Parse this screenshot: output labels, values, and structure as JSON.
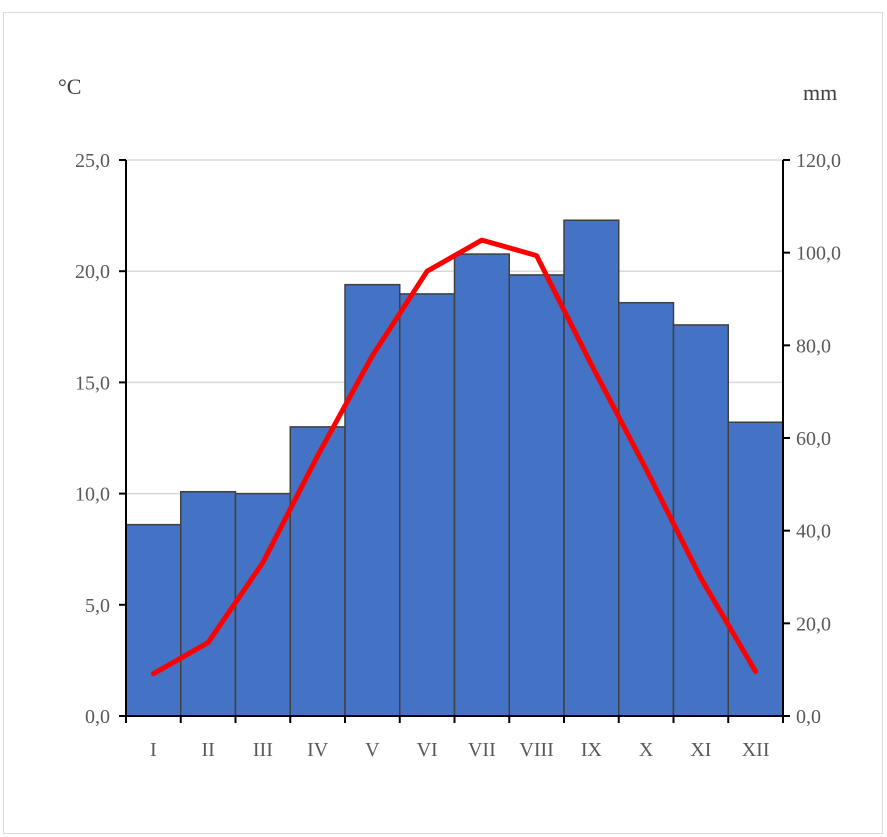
{
  "chart_data": {
    "type": "bar",
    "categories": [
      "I",
      "II",
      "III",
      "IV",
      "V",
      "VI",
      "VII",
      "VIII",
      "IX",
      "X",
      "XI",
      "XII"
    ],
    "series": [
      {
        "type": "bar",
        "axis": "right",
        "unit": "mm",
        "color": "#4472c4",
        "values": [
          41.3,
          48.4,
          48.0,
          62.4,
          93.1,
          91.1,
          99.7,
          95.2,
          107.0,
          89.2,
          84.4,
          63.4
        ]
      },
      {
        "type": "line",
        "axis": "left",
        "unit": "°C",
        "color": "#ff0000",
        "values": [
          1.9,
          3.3,
          6.9,
          11.7,
          16.2,
          20.0,
          21.4,
          20.7,
          15.8,
          11.1,
          6.2,
          2.0
        ]
      }
    ],
    "y_left": {
      "label": "°C",
      "lim": [
        0,
        25
      ],
      "ticks": [
        "0,0",
        "5,0",
        "10,0",
        "15,0",
        "20,0",
        "25,0"
      ]
    },
    "y_right": {
      "label": "mm",
      "lim": [
        0,
        120
      ],
      "ticks": [
        "0,0",
        "20,0",
        "40,0",
        "60,0",
        "80,0",
        "100,0",
        "120,0"
      ]
    },
    "grid": true,
    "legend": "none"
  }
}
